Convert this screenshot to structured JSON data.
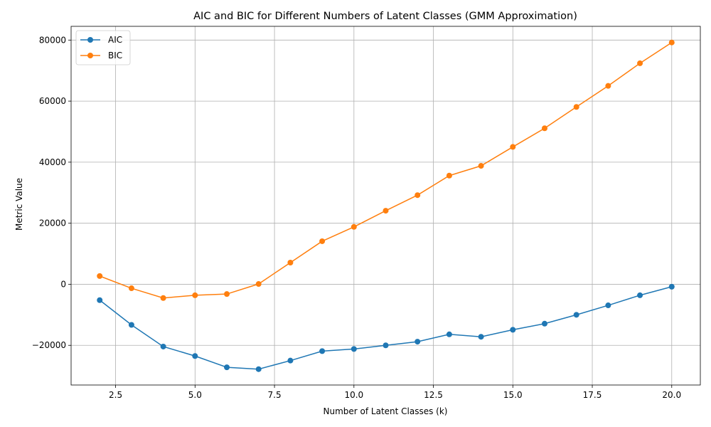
{
  "chart_data": {
    "type": "line",
    "title": "AIC and BIC for Different Numbers of Latent Classes (GMM Approximation)",
    "xlabel": "Number of Latent Classes (k)",
    "ylabel": "Metric Value",
    "xlim": [
      1.1,
      20.9
    ],
    "ylim": [
      -33000,
      84500
    ],
    "xticks": [
      2.5,
      5.0,
      7.5,
      10.0,
      12.5,
      15.0,
      17.5,
      20.0
    ],
    "xtick_labels": [
      "2.5",
      "5.0",
      "7.5",
      "10.0",
      "12.5",
      "15.0",
      "17.5",
      "20.0"
    ],
    "yticks": [
      -20000,
      0,
      20000,
      40000,
      60000,
      80000
    ],
    "ytick_labels": [
      "−20000",
      "0",
      "20000",
      "40000",
      "60000",
      "80000"
    ],
    "grid": true,
    "legend_position": "top-left",
    "x": [
      2,
      3,
      4,
      5,
      6,
      7,
      8,
      9,
      10,
      11,
      12,
      13,
      14,
      15,
      16,
      17,
      18,
      19,
      20
    ],
    "series": [
      {
        "name": "AIC",
        "color": "#1f77b4",
        "values": [
          -5200,
          -13300,
          -20400,
          -23500,
          -27200,
          -27800,
          -25000,
          -21900,
          -21200,
          -20000,
          -18800,
          -16400,
          -17200,
          -14900,
          -12900,
          -10000,
          -6900,
          -3600,
          -800
        ]
      },
      {
        "name": "BIC",
        "color": "#ff7f0e",
        "values": [
          2700,
          -1300,
          -4500,
          -3600,
          -3200,
          100,
          7100,
          14100,
          18800,
          24100,
          29200,
          35600,
          38800,
          45000,
          51100,
          58100,
          65000,
          72400,
          79200
        ]
      }
    ]
  }
}
